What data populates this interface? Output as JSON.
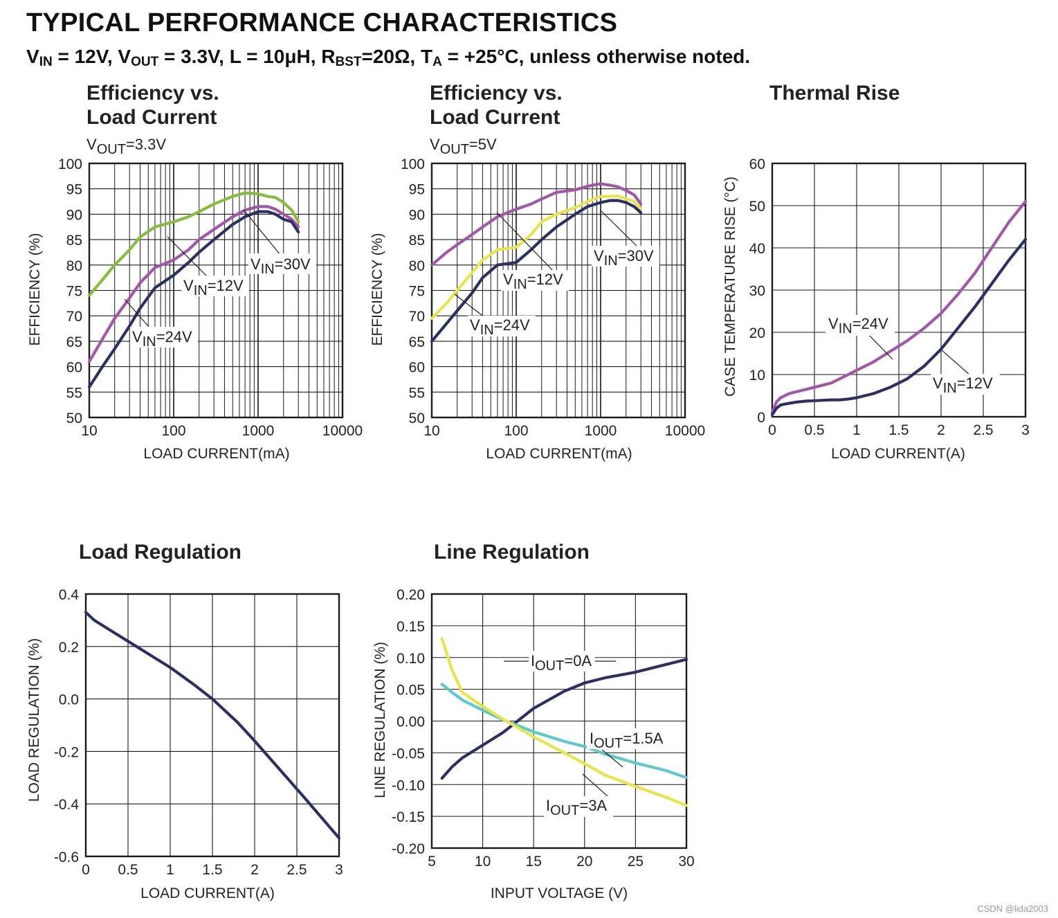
{
  "header": {
    "title": "TYPICAL PERFORMANCE CHARACTERISTICS",
    "conditions": {
      "p1": "V",
      "p1_sub": "IN",
      "p2": " = 12V, V",
      "p2_sub": "OUT",
      "p3": " = 3.3V, L = 10μH, R",
      "p3_sub": "BST",
      "p4": "=20Ω, T",
      "p4_sub": "A",
      "p5": " = +25°C, unless otherwise noted."
    }
  },
  "colors": {
    "vin12": "#2c2f63",
    "vin24": "#a256a9",
    "vin30_green": "#86bd3c",
    "vin30_yellow": "#e8e44c",
    "iout15": "#5ec8d0",
    "grid": "#1a1a1a"
  },
  "watermark": "CSDN @lida2003",
  "chart_data": [
    {
      "id": "eff33",
      "type": "line",
      "title_line1": "Efficiency vs.",
      "title_line2": "Load Current",
      "subtitle_main": "V",
      "subtitle_sub": "OUT",
      "subtitle_rest": "=3.3V",
      "xlabel": "LOAD CURRENT(mA)",
      "ylabel": "EFFICIENCY (%)",
      "xscale": "log",
      "xlim": [
        10,
        10000
      ],
      "ylim": [
        50,
        100
      ],
      "xticks": [
        10,
        100,
        1000,
        10000
      ],
      "xticklabels": [
        "10",
        "100",
        "1000",
        "10000"
      ],
      "yticks": [
        50,
        55,
        60,
        65,
        70,
        75,
        80,
        85,
        90,
        95,
        100
      ],
      "yticklabels": [
        "50",
        "55",
        "60",
        "65",
        "70",
        "75",
        "80",
        "85",
        "90",
        "95",
        "100"
      ],
      "series": [
        {
          "name": "VIN=30V",
          "color": "vin30_green",
          "x": [
            10,
            15,
            20,
            30,
            40,
            60,
            100,
            150,
            200,
            300,
            500,
            700,
            1000,
            1300,
            1600,
            2000,
            2500,
            3000
          ],
          "y": [
            74,
            77.5,
            80,
            83,
            85.5,
            87.5,
            88.5,
            89.5,
            90.5,
            92,
            93.5,
            94.2,
            94,
            93.5,
            93.3,
            92.3,
            90.8,
            88.5
          ]
        },
        {
          "name": "VIN=24V",
          "color": "vin24",
          "x": [
            10,
            15,
            20,
            30,
            40,
            60,
            100,
            150,
            200,
            300,
            500,
            700,
            1000,
            1300,
            1600,
            2000,
            2500,
            3000
          ],
          "y": [
            61,
            66,
            69.5,
            73.5,
            76.5,
            79.5,
            81,
            83,
            85,
            87,
            89.5,
            90.8,
            91.5,
            91.5,
            91,
            90,
            89,
            87.5
          ]
        },
        {
          "name": "VIN=12V",
          "color": "vin12",
          "x": [
            10,
            15,
            20,
            30,
            40,
            60,
            100,
            150,
            200,
            300,
            500,
            700,
            1000,
            1300,
            1600,
            2000,
            2500,
            3000
          ],
          "y": [
            56,
            60.5,
            63.5,
            68,
            71.5,
            75.5,
            78,
            80.5,
            82.5,
            85,
            88,
            89.5,
            90.5,
            90.5,
            90,
            89,
            88.5,
            86.5
          ]
        }
      ],
      "annotations": [
        {
          "main": "V",
          "sub": "IN",
          "rest": "=30V"
        },
        {
          "main": "V",
          "sub": "IN",
          "rest": "=12V"
        },
        {
          "main": "V",
          "sub": "IN",
          "rest": "=24V"
        }
      ]
    },
    {
      "id": "eff5",
      "type": "line",
      "title_line1": "Efficiency vs.",
      "title_line2": "Load Current",
      "subtitle_main": "V",
      "subtitle_sub": "OUT",
      "subtitle_rest": "=5V",
      "xlabel": "LOAD CURRENT(mA)",
      "ylabel": "EFFICIENCY (%)",
      "xscale": "log",
      "xlim": [
        10,
        10000
      ],
      "ylim": [
        50,
        100
      ],
      "xticks": [
        10,
        100,
        1000,
        10000
      ],
      "xticklabels": [
        "10",
        "100",
        "1000",
        "10000"
      ],
      "yticks": [
        50,
        55,
        60,
        65,
        70,
        75,
        80,
        85,
        90,
        95,
        100
      ],
      "yticklabels": [
        "50",
        "55",
        "60",
        "65",
        "70",
        "75",
        "80",
        "85",
        "90",
        "95",
        "100"
      ],
      "series": [
        {
          "name": "VIN=12V (upper)",
          "color": "vin24",
          "x": [
            10,
            15,
            20,
            30,
            40,
            60,
            100,
            150,
            200,
            300,
            500,
            700,
            1000,
            1300,
            1600,
            2000,
            2500,
            3000
          ],
          "y": [
            80,
            82.5,
            84,
            86,
            87.5,
            89.5,
            91,
            92,
            93,
            94.3,
            94.8,
            95.5,
            96,
            95.7,
            95.4,
            94.7,
            93.8,
            92
          ]
        },
        {
          "name": "VIN=24V (middle)",
          "color": "vin30_yellow",
          "x": [
            10,
            15,
            20,
            30,
            40,
            60,
            100,
            150,
            200,
            300,
            500,
            700,
            1000,
            1300,
            1600,
            2000,
            2500,
            3000
          ],
          "y": [
            69.5,
            72.5,
            75,
            78.5,
            81,
            83,
            83.5,
            86,
            88.5,
            90,
            91.3,
            92.5,
            93.5,
            93.5,
            93.6,
            93,
            92.5,
            91
          ]
        },
        {
          "name": "VIN=30V (lower)",
          "color": "vin12",
          "x": [
            10,
            15,
            20,
            30,
            40,
            60,
            100,
            150,
            200,
            300,
            500,
            700,
            1000,
            1300,
            1600,
            2000,
            2500,
            3000
          ],
          "y": [
            65,
            68.5,
            71,
            74.5,
            77.5,
            80,
            80.5,
            83,
            85,
            87.5,
            90,
            91.5,
            92.3,
            92.7,
            92.7,
            92.3,
            91.5,
            90.3
          ]
        }
      ],
      "annotations": [
        {
          "main": "V",
          "sub": "IN",
          "rest": "=30V"
        },
        {
          "main": "V",
          "sub": "IN",
          "rest": "=12V"
        },
        {
          "main": "V",
          "sub": "IN",
          "rest": "=24V"
        }
      ]
    },
    {
      "id": "thermal",
      "type": "line",
      "title": "Thermal Rise",
      "xlabel": "LOAD CURRENT(A)",
      "ylabel": "CASE TEMPERATURE RISE (°C)",
      "xlim": [
        0,
        3
      ],
      "ylim": [
        0,
        60
      ],
      "xticks": [
        0,
        0.5,
        1,
        1.5,
        2,
        2.5,
        3
      ],
      "xticklabels": [
        "0",
        "0.5",
        "1",
        "1.5",
        "2",
        "2.5",
        "3"
      ],
      "yticks": [
        0,
        10,
        20,
        30,
        40,
        50,
        60
      ],
      "yticklabels": [
        "0",
        "10",
        "20",
        "30",
        "40",
        "50",
        "60"
      ],
      "series": [
        {
          "name": "VIN=24V",
          "color": "vin24",
          "x": [
            0,
            0.05,
            0.1,
            0.15,
            0.2,
            0.3,
            0.4,
            0.5,
            0.6,
            0.7,
            0.8,
            0.9,
            1.0,
            1.2,
            1.4,
            1.6,
            1.8,
            2.0,
            2.2,
            2.4,
            2.6,
            2.8,
            3.0
          ],
          "y": [
            1,
            3.5,
            4.5,
            5,
            5.5,
            6,
            6.5,
            7,
            7.5,
            8,
            9,
            10,
            11,
            13,
            15.5,
            18,
            21,
            24.5,
            29,
            34,
            40,
            46,
            51
          ]
        },
        {
          "name": "VIN=12V",
          "color": "vin12",
          "x": [
            0,
            0.05,
            0.1,
            0.15,
            0.2,
            0.3,
            0.4,
            0.5,
            0.6,
            0.7,
            0.8,
            0.9,
            1.0,
            1.2,
            1.4,
            1.6,
            1.8,
            2.0,
            2.2,
            2.4,
            2.6,
            2.8,
            3.0
          ],
          "y": [
            0.5,
            2,
            2.8,
            3,
            3.2,
            3.5,
            3.7,
            3.8,
            3.9,
            4,
            4,
            4.2,
            4.5,
            5.5,
            7,
            9,
            12,
            16,
            21,
            26,
            31.5,
            37,
            42
          ]
        }
      ],
      "annotations": [
        {
          "main": "V",
          "sub": "IN",
          "rest": "=24V"
        },
        {
          "main": "V",
          "sub": "IN",
          "rest": "=12V"
        }
      ]
    },
    {
      "id": "loadreg",
      "type": "line",
      "title": "Load Regulation",
      "xlabel": "LOAD CURRENT(A)",
      "ylabel": "LOAD REGULATION  (%)",
      "xlim": [
        0,
        3
      ],
      "ylim": [
        -0.6,
        0.4
      ],
      "xticks": [
        0,
        0.5,
        1,
        1.5,
        2,
        2.5,
        3
      ],
      "xticklabels": [
        "0",
        "0.5",
        "1",
        "1.5",
        "2",
        "2.5",
        "3"
      ],
      "yticks": [
        -0.6,
        -0.4,
        -0.2,
        0,
        0.2,
        0.4
      ],
      "yticklabels": [
        "-0.6",
        "-0.4",
        "-0.2",
        "0.0",
        "0.2",
        "0.4"
      ],
      "series": [
        {
          "name": "load regulation",
          "color": "vin12",
          "x": [
            0,
            0.1,
            0.3,
            0.6,
            1.0,
            1.3,
            1.5,
            1.8,
            2.0,
            2.3,
            2.6,
            3.0
          ],
          "y": [
            0.33,
            0.3,
            0.26,
            0.2,
            0.12,
            0.05,
            0.0,
            -0.09,
            -0.16,
            -0.27,
            -0.38,
            -0.53
          ]
        }
      ],
      "annotations": []
    },
    {
      "id": "linereg",
      "type": "line",
      "title": "Line Regulation",
      "xlabel": "INPUT VOLTAGE (V)",
      "ylabel": "LINE REGULATION  (%)",
      "xlim": [
        5,
        30
      ],
      "ylim": [
        -0.2,
        0.2
      ],
      "xticks": [
        5,
        10,
        15,
        20,
        25,
        30
      ],
      "xticklabels": [
        "5",
        "10",
        "15",
        "20",
        "25",
        "30"
      ],
      "yticks": [
        -0.2,
        -0.15,
        -0.1,
        -0.05,
        0,
        0.05,
        0.1,
        0.15,
        0.2
      ],
      "yticklabels": [
        "-0.20",
        "-0.15",
        "-0.10",
        "-0.05",
        "0.00",
        "0.05",
        "0.10",
        "0.15",
        "0.20"
      ],
      "series": [
        {
          "name": "IOUT=0A",
          "color": "vin12",
          "x": [
            6,
            7,
            8,
            10,
            12,
            15,
            18,
            20,
            22,
            25,
            28,
            30
          ],
          "y": [
            -0.09,
            -0.072,
            -0.058,
            -0.038,
            -0.018,
            0.02,
            0.047,
            0.06,
            0.068,
            0.077,
            0.089,
            0.097
          ]
        },
        {
          "name": "IOUT=1.5A",
          "color": "iout15",
          "x": [
            6,
            7,
            8,
            10,
            12,
            15,
            18,
            20,
            22,
            25,
            28,
            30
          ],
          "y": [
            0.058,
            0.045,
            0.033,
            0.017,
            0.002,
            -0.017,
            -0.032,
            -0.04,
            -0.052,
            -0.066,
            -0.078,
            -0.089
          ]
        },
        {
          "name": "IOUT=3A",
          "color": "vin30_yellow",
          "x": [
            6,
            7,
            8,
            10,
            12,
            15,
            18,
            20,
            22,
            25,
            28,
            30
          ],
          "y": [
            0.13,
            0.08,
            0.045,
            0.023,
            0.003,
            -0.025,
            -0.05,
            -0.067,
            -0.085,
            -0.103,
            -0.12,
            -0.133
          ]
        }
      ],
      "annotations": [
        {
          "main": "I",
          "sub": "OUT",
          "rest": "=0A"
        },
        {
          "main": "I",
          "sub": "OUT",
          "rest": "=1.5A"
        },
        {
          "main": "I",
          "sub": "OUT",
          "rest": "=3A"
        }
      ]
    }
  ]
}
